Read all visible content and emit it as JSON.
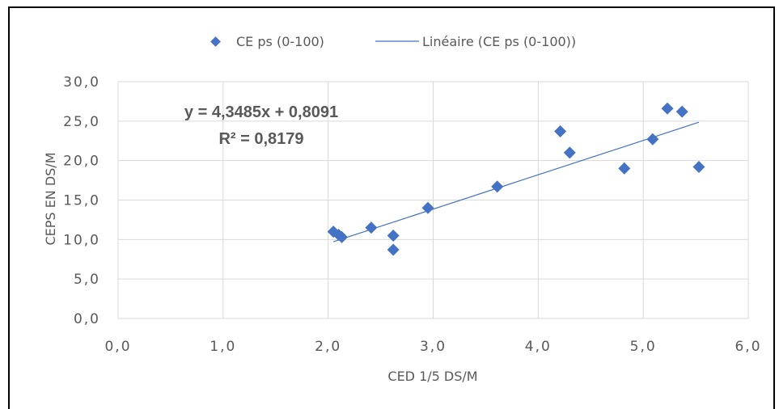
{
  "chart_data": {
    "type": "scatter",
    "title": "",
    "xlabel": "CED 1/5 DS/M",
    "ylabel": "CEPS EN DS/M",
    "xlim": [
      0,
      6
    ],
    "ylim": [
      0,
      30
    ],
    "x_ticks": [
      "0,0",
      "1,0",
      "2,0",
      "3,0",
      "4,0",
      "5,0",
      "6,0"
    ],
    "y_ticks": [
      "0,0",
      "5,0",
      "10,0",
      "15,0",
      "20,0",
      "25,0",
      "30,0"
    ],
    "grid": true,
    "legend_position": "top",
    "series": [
      {
        "name": "CE ps (0-100)",
        "marker": "diamond",
        "color": "#4472C4",
        "points": [
          [
            2.05,
            11.0
          ],
          [
            2.1,
            10.6
          ],
          [
            2.13,
            10.3
          ],
          [
            2.41,
            11.5
          ],
          [
            2.62,
            10.5
          ],
          [
            2.62,
            8.7
          ],
          [
            2.95,
            14.0
          ],
          [
            3.61,
            16.7
          ],
          [
            4.21,
            23.7
          ],
          [
            4.3,
            21.0
          ],
          [
            4.82,
            19.0
          ],
          [
            5.09,
            22.7
          ],
          [
            5.23,
            26.6
          ],
          [
            5.37,
            26.2
          ],
          [
            5.53,
            19.2
          ]
        ]
      }
    ],
    "trendline": {
      "name": "Linéaire (CE ps (0-100))",
      "type": "linear",
      "slope": 4.3485,
      "intercept": 0.8091,
      "x_range": [
        2.05,
        5.53
      ],
      "color": "#4472C4"
    },
    "annotations": {
      "equation": "y = 4,3485x + 0,8091",
      "r_squared": "R² = 0,8179"
    }
  }
}
